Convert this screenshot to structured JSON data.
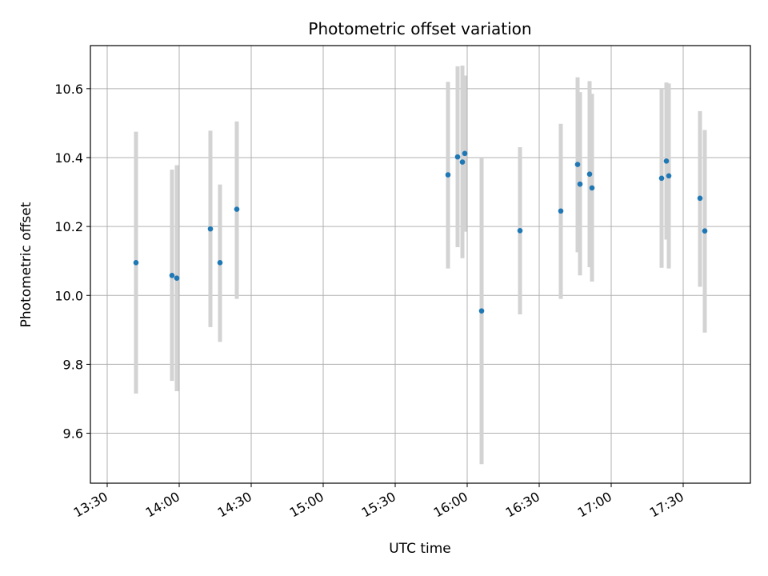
{
  "chart_data": {
    "type": "scatter",
    "title": "Photometric offset variation",
    "xlabel": "UTC time",
    "ylabel": "Photometric offset",
    "x_type": "time",
    "xlim": [
      "13:23",
      "17:58"
    ],
    "ylim": [
      9.455,
      10.725
    ],
    "x_ticks": [
      "13:30",
      "14:00",
      "14:30",
      "15:00",
      "15:30",
      "16:00",
      "16:30",
      "17:00",
      "17:30"
    ],
    "y_ticks": [
      9.6,
      9.8,
      10.0,
      10.2,
      10.4,
      10.6
    ],
    "y_tick_labels": [
      "9.6",
      "9.8",
      "10.0",
      "10.2",
      "10.4",
      "10.6"
    ],
    "grid": true,
    "marker_color": "#1f77b4",
    "errorbar_color": "#d3d3d3",
    "points": [
      {
        "x": "13:42",
        "y": 10.095,
        "lo": 9.715,
        "hi": 10.475
      },
      {
        "x": "13:57",
        "y": 10.058,
        "lo": 9.752,
        "hi": 10.365
      },
      {
        "x": "13:59",
        "y": 10.05,
        "lo": 9.722,
        "hi": 10.378
      },
      {
        "x": "14:13",
        "y": 10.193,
        "lo": 9.908,
        "hi": 10.478
      },
      {
        "x": "14:17",
        "y": 10.095,
        "lo": 9.865,
        "hi": 10.322
      },
      {
        "x": "14:24",
        "y": 10.25,
        "lo": 9.99,
        "hi": 10.505
      },
      {
        "x": "15:52",
        "y": 10.35,
        "lo": 10.078,
        "hi": 10.62
      },
      {
        "x": "15:56",
        "y": 10.402,
        "lo": 10.14,
        "hi": 10.665
      },
      {
        "x": "15:58",
        "y": 10.387,
        "lo": 10.108,
        "hi": 10.667
      },
      {
        "x": "15:59",
        "y": 10.412,
        "lo": 10.185,
        "hi": 10.638
      },
      {
        "x": "16:06",
        "y": 9.955,
        "lo": 9.51,
        "hi": 10.4
      },
      {
        "x": "16:22",
        "y": 10.188,
        "lo": 9.945,
        "hi": 10.43
      },
      {
        "x": "16:39",
        "y": 10.245,
        "lo": 9.99,
        "hi": 10.498
      },
      {
        "x": "16:46",
        "y": 10.38,
        "lo": 10.125,
        "hi": 10.633
      },
      {
        "x": "16:47",
        "y": 10.323,
        "lo": 10.058,
        "hi": 10.59
      },
      {
        "x": "16:51",
        "y": 10.352,
        "lo": 10.082,
        "hi": 10.622
      },
      {
        "x": "16:52",
        "y": 10.312,
        "lo": 10.04,
        "hi": 10.585
      },
      {
        "x": "17:21",
        "y": 10.34,
        "lo": 10.08,
        "hi": 10.6
      },
      {
        "x": "17:23",
        "y": 10.39,
        "lo": 10.162,
        "hi": 10.618
      },
      {
        "x": "17:24",
        "y": 10.347,
        "lo": 10.078,
        "hi": 10.615
      },
      {
        "x": "17:37",
        "y": 10.282,
        "lo": 10.025,
        "hi": 10.535
      },
      {
        "x": "17:39",
        "y": 10.187,
        "lo": 9.892,
        "hi": 10.48
      }
    ]
  }
}
